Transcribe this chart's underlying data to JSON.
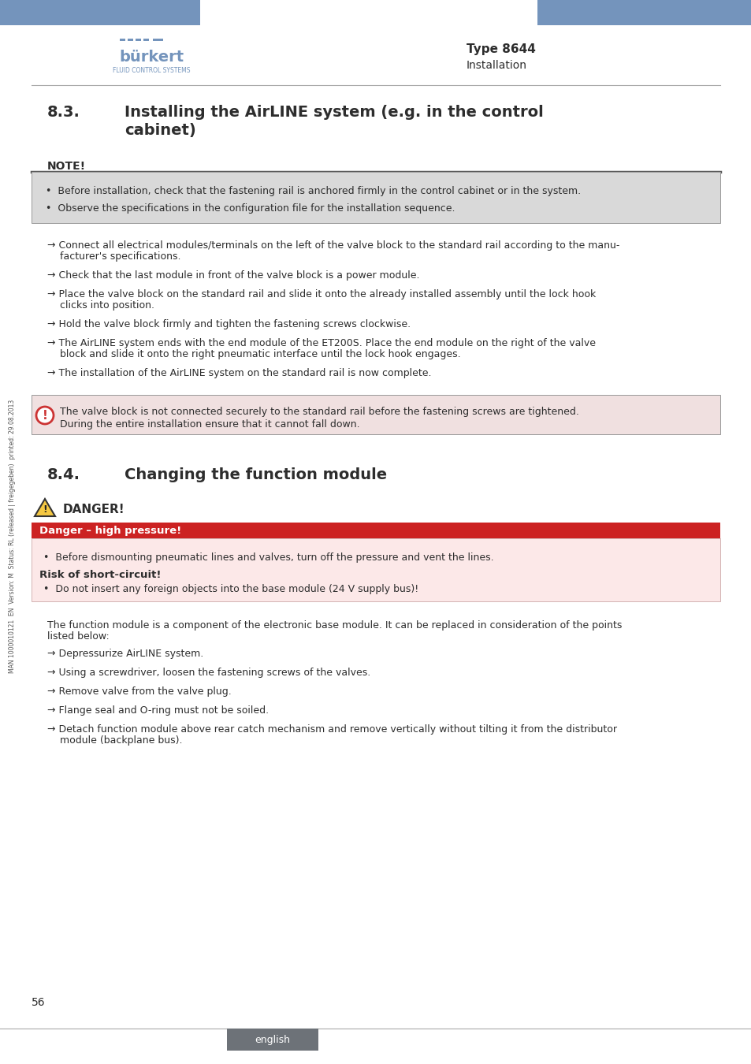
{
  "header_blue": "#7494bc",
  "type_label": "Type 8644",
  "section_label": "Installation",
  "page_number": "56",
  "footer_lang": "english",
  "footer_bg": "#6d7278",
  "separator_color": "#aaaaaa",
  "note_title": "NOTE!",
  "note_bg": "#d9d9d9",
  "note_border": "#555555",
  "note_items": [
    "Before installation, check that the fastening rail is anchored firmly in the control cabinet or in the system.",
    "Observe the specifications in the configuration file for the installation sequence."
  ],
  "step_83_1a": "→ Connect all electrical modules/terminals on the left of the valve block to the standard rail according to the manu-",
  "step_83_1b": "    facturer's specifications.",
  "step_83_2": "→ Check that the last module in front of the valve block is a power module.",
  "step_83_3a": "→ Place the valve block on the standard rail and slide it onto the already installed assembly until the lock hook",
  "step_83_3b": "    clicks into position.",
  "step_83_4": "→ Hold the valve block firmly and tighten the fastening screws clockwise.",
  "step_83_5a": "→ The AirLINE system ends with the end module of the ET200S. Place the end module on the right of the valve",
  "step_83_5b": "    block and slide it onto the right pneumatic interface until the lock hook engages.",
  "step_83_6": "→ The installation of the AirLINE system on the standard rail is now complete.",
  "warn_line1": "The valve block is not connected securely to the standard rail before the fastening screws are tightened.",
  "warn_line2": "During the entire installation ensure that it cannot fall down.",
  "section_84_num": "8.4.",
  "section_84_title": "Changing the function module",
  "danger_title": "DANGER!",
  "danger_high_pressure": "Danger – high pressure!",
  "danger_high_pressure_text": "Before dismounting pneumatic lines and valves, turn off the pressure and vent the lines.",
  "danger_short_circuit": "Risk of short-circuit!",
  "danger_short_circuit_text": "Do not insert any foreign objects into the base module (24 V supply bus)!",
  "intro_84a": "The function module is a component of the electronic base module. It can be replaced in consideration of the points",
  "intro_84b": "listed below:",
  "step_84_1": "→ Depressurize AirLINE system.",
  "step_84_2": "→ Using a screwdriver, loosen the fastening screws of the valves.",
  "step_84_3": "→ Remove valve from the valve plug.",
  "step_84_4": "→ Flange seal and O-ring must not be soiled.",
  "step_84_5a": "→ Detach function module above rear catch mechanism and remove vertically without tilting it from the distributor",
  "step_84_5b": "    module (backplane bus).",
  "side_text": "MAN 1000010121  EN  Version: M  Status: RL (released | freigegeben)  printed: 29.08.2013",
  "text_color": "#2d2d2d"
}
